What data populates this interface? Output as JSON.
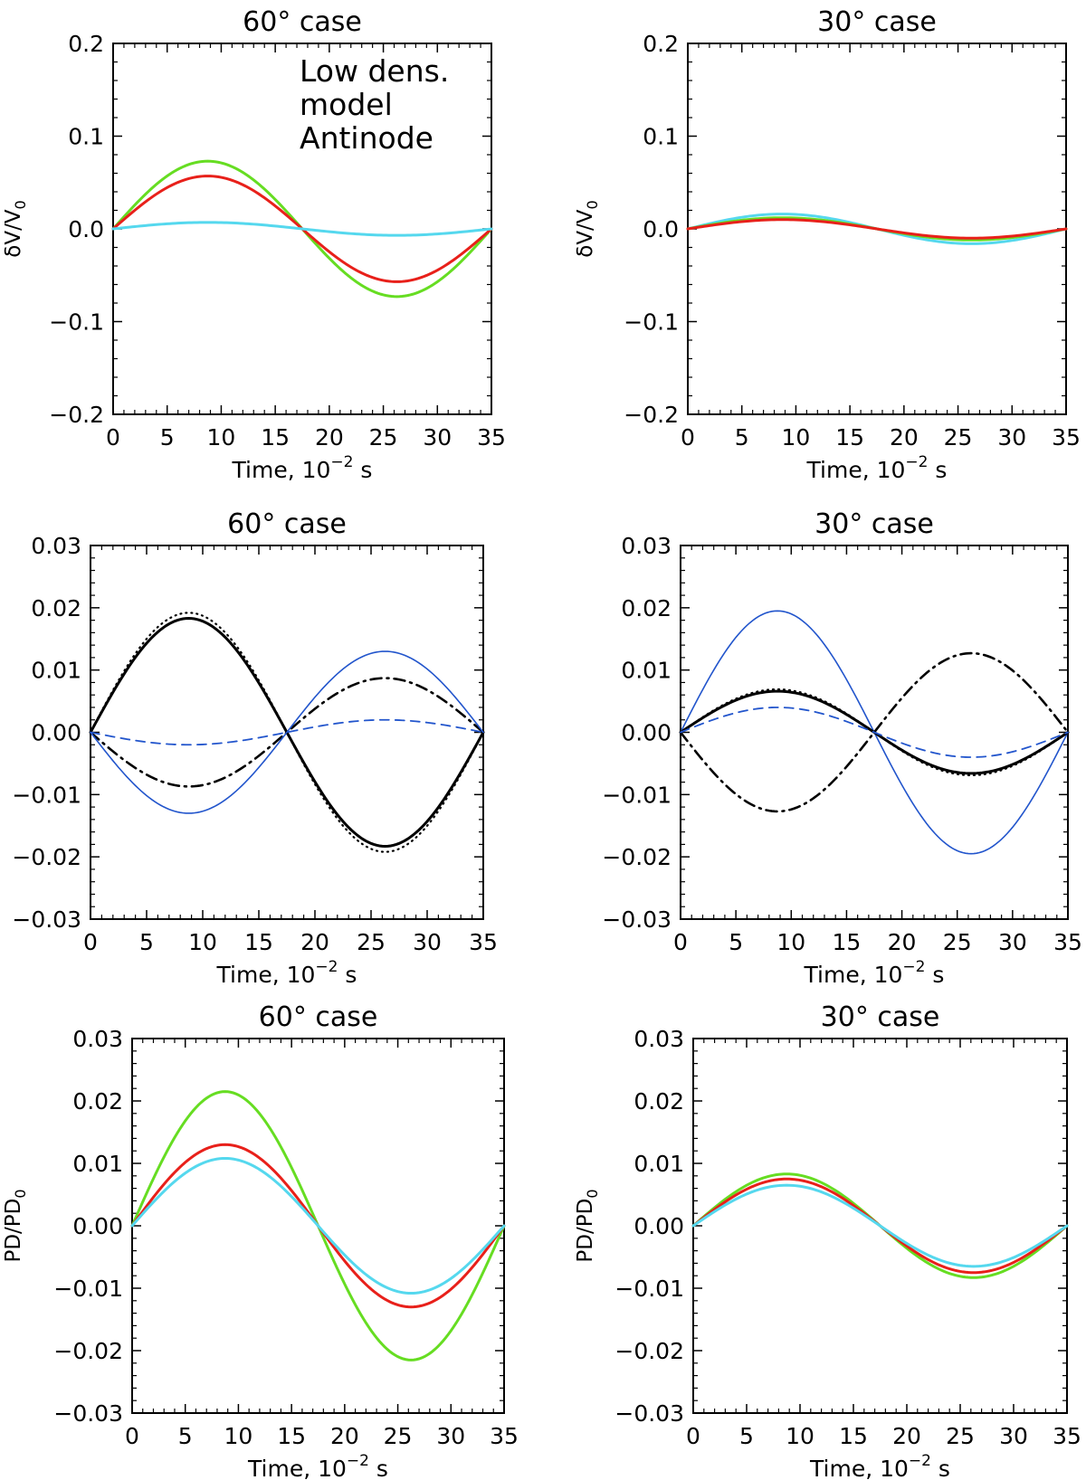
{
  "chart_data": [
    {
      "id": "p1",
      "type": "line",
      "title": "60° case",
      "xlabel": "Time, 10^-2 s",
      "ylabel": "δV/V0",
      "xlim": [
        0,
        35
      ],
      "ylim": [
        -0.2,
        0.2
      ],
      "xticks": [
        "0",
        "5",
        "10",
        "15",
        "20",
        "25",
        "30",
        "35"
      ],
      "yticks": [
        "−0.2",
        "−0.1",
        "0.0",
        "0.1",
        "0.2"
      ],
      "annotations": [
        "Low dens.",
        "model",
        "Antinode"
      ],
      "series": [
        {
          "name": "green",
          "color": "#66dd22",
          "style": "solid",
          "amplitude": 0.073
        },
        {
          "name": "red",
          "color": "#e8201a",
          "style": "solid",
          "amplitude": 0.057
        },
        {
          "name": "cyan",
          "color": "#55d8ee",
          "style": "solid",
          "amplitude": 0.007
        }
      ]
    },
    {
      "id": "p2",
      "type": "line",
      "title": "30° case",
      "xlabel": "Time, 10^-2 s",
      "ylabel": "δV/V0",
      "xlim": [
        0,
        35
      ],
      "ylim": [
        -0.2,
        0.2
      ],
      "xticks": [
        "0",
        "5",
        "10",
        "15",
        "20",
        "25",
        "30",
        "35"
      ],
      "yticks": [
        "−0.2",
        "−0.1",
        "0.0",
        "0.1",
        "0.2"
      ],
      "annotations": [],
      "series": [
        {
          "name": "cyan",
          "color": "#55d8ee",
          "style": "solid",
          "amplitude": 0.016
        },
        {
          "name": "green",
          "color": "#66dd22",
          "style": "solid",
          "amplitude": 0.012
        },
        {
          "name": "red",
          "color": "#e8201a",
          "style": "solid",
          "amplitude": 0.01
        }
      ]
    },
    {
      "id": "p3",
      "type": "line",
      "title": "60° case",
      "xlabel": "Time, 10^-2 s",
      "ylabel": "",
      "xlim": [
        0,
        35
      ],
      "ylim": [
        -0.03,
        0.03
      ],
      "xticks": [
        "0",
        "5",
        "10",
        "15",
        "20",
        "25",
        "30",
        "35"
      ],
      "yticks": [
        "−0.03",
        "−0.02",
        "−0.01",
        "0.00",
        "0.01",
        "0.02",
        "0.03"
      ],
      "annotations": [],
      "series": [
        {
          "name": "black-dotted",
          "color": "#000000",
          "style": "dotted",
          "amplitude": 0.0192
        },
        {
          "name": "black-solid",
          "color": "#000000",
          "style": "solid",
          "amplitude": 0.0183
        },
        {
          "name": "black-dashdot",
          "color": "#000000",
          "style": "dashdot",
          "amplitude": -0.0087
        },
        {
          "name": "blue-solid",
          "color": "#2255cc",
          "style": "thin",
          "amplitude": -0.013
        },
        {
          "name": "blue-dashed",
          "color": "#2255cc",
          "style": "dashed",
          "amplitude": -0.002
        }
      ]
    },
    {
      "id": "p4",
      "type": "line",
      "title": "30° case",
      "xlabel": "Time, 10^-2 s",
      "ylabel": "",
      "xlim": [
        0,
        35
      ],
      "ylim": [
        -0.03,
        0.03
      ],
      "xticks": [
        "0",
        "5",
        "10",
        "15",
        "20",
        "25",
        "30",
        "35"
      ],
      "yticks": [
        "−0.03",
        "−0.02",
        "−0.01",
        "0.00",
        "0.01",
        "0.02",
        "0.03"
      ],
      "annotations": [],
      "series": [
        {
          "name": "blue-solid",
          "color": "#2255cc",
          "style": "thin",
          "amplitude": 0.0195
        },
        {
          "name": "black-dashdot",
          "color": "#000000",
          "style": "dashdot",
          "amplitude": -0.0127
        },
        {
          "name": "black-dotted",
          "color": "#000000",
          "style": "dotted",
          "amplitude": 0.0069
        },
        {
          "name": "black-solid",
          "color": "#000000",
          "style": "solid",
          "amplitude": 0.0066
        },
        {
          "name": "blue-dashed",
          "color": "#2255cc",
          "style": "dashed",
          "amplitude": 0.004
        }
      ]
    },
    {
      "id": "p5",
      "type": "line",
      "title": "60° case",
      "xlabel": "Time, 10^-2 s",
      "ylabel": "PD/PD0",
      "xlim": [
        0,
        35
      ],
      "ylim": [
        -0.03,
        0.03
      ],
      "xticks": [
        "0",
        "5",
        "10",
        "15",
        "20",
        "25",
        "30",
        "35"
      ],
      "yticks": [
        "−0.03",
        "−0.02",
        "−0.01",
        "0.00",
        "0.01",
        "0.02",
        "0.03"
      ],
      "annotations": [],
      "series": [
        {
          "name": "green",
          "color": "#66dd22",
          "style": "solid",
          "amplitude": 0.0215
        },
        {
          "name": "red",
          "color": "#e8201a",
          "style": "solid",
          "amplitude": 0.013
        },
        {
          "name": "cyan",
          "color": "#55d8ee",
          "style": "solid",
          "amplitude": 0.0108
        }
      ]
    },
    {
      "id": "p6",
      "type": "line",
      "title": "30° case",
      "xlabel": "Time, 10^-2 s",
      "ylabel": "PD/PD0",
      "xlim": [
        0,
        35
      ],
      "ylim": [
        -0.03,
        0.03
      ],
      "xticks": [
        "0",
        "5",
        "10",
        "15",
        "20",
        "25",
        "30",
        "35"
      ],
      "yticks": [
        "−0.03",
        "−0.02",
        "−0.01",
        "0.00",
        "0.01",
        "0.02",
        "0.03"
      ],
      "annotations": [],
      "series": [
        {
          "name": "green",
          "color": "#66dd22",
          "style": "solid",
          "amplitude": 0.0083
        },
        {
          "name": "red",
          "color": "#e8201a",
          "style": "solid",
          "amplitude": 0.0075
        },
        {
          "name": "cyan",
          "color": "#55d8ee",
          "style": "solid",
          "amplitude": 0.0065
        }
      ]
    }
  ]
}
